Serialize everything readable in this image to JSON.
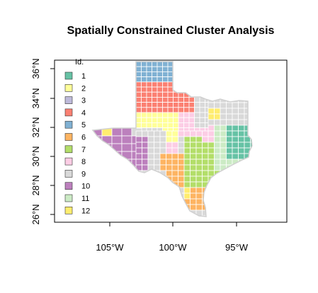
{
  "title": "Spatially Constrained Cluster Analysis",
  "legend": {
    "title": "Id.",
    "items": [
      {
        "label": "1",
        "color": "#66C2A5"
      },
      {
        "label": "2",
        "color": "#FFFF99"
      },
      {
        "label": "3",
        "color": "#BEBADA"
      },
      {
        "label": "4",
        "color": "#FB8072"
      },
      {
        "label": "5",
        "color": "#80B1D3"
      },
      {
        "label": "6",
        "color": "#FDB462"
      },
      {
        "label": "7",
        "color": "#B3DE69"
      },
      {
        "label": "8",
        "color": "#FCCDE5"
      },
      {
        "label": "9",
        "color": "#D9D9D9"
      },
      {
        "label": "10",
        "color": "#BC80BD"
      },
      {
        "label": "11",
        "color": "#CCEBC5"
      },
      {
        "label": "12",
        "color": "#FFED6F"
      }
    ]
  },
  "axes": {
    "x_ticks": [
      "105°W",
      "100°W",
      "95°W"
    ],
    "y_ticks": [
      "26°N",
      "28°N",
      "30°N",
      "32°N",
      "34°N",
      "36°N"
    ]
  },
  "map": {
    "subject": "Texas counties colored by cluster id",
    "border_color": "#ffffff",
    "outline_color": "#cccccc"
  }
}
